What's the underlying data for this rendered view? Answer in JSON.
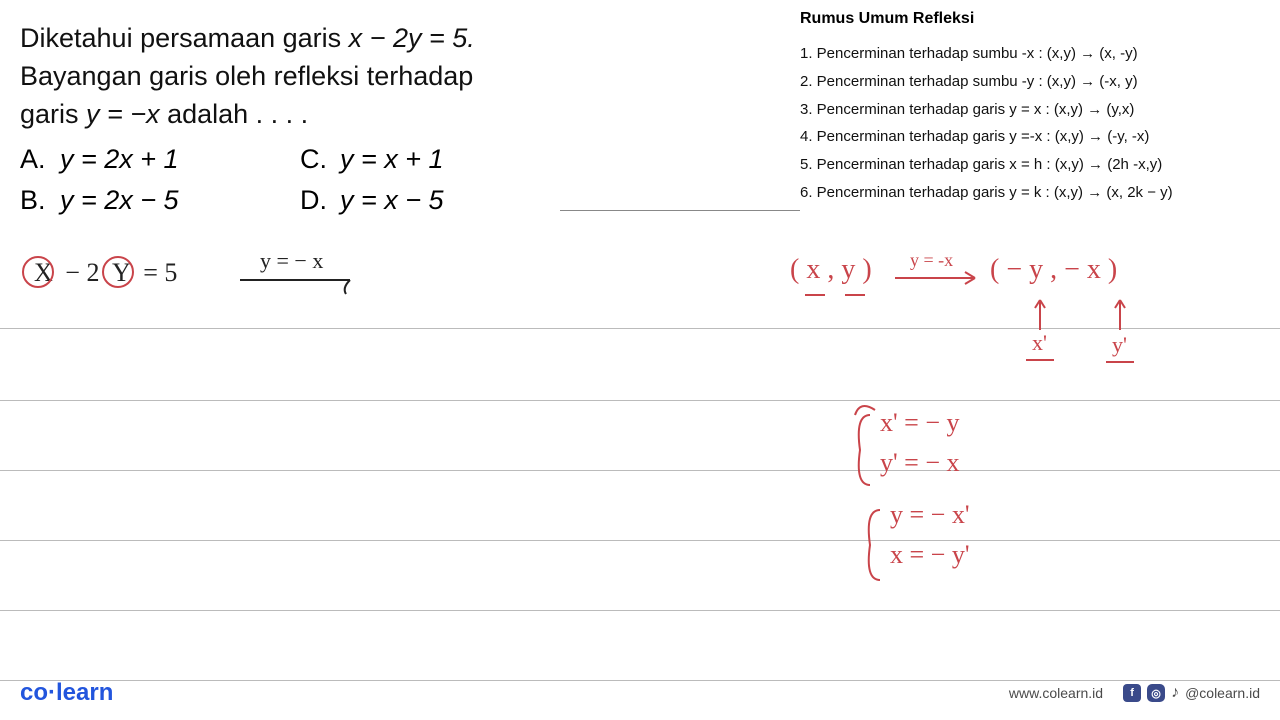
{
  "problem": {
    "line1_a": "Diketahui persamaan garis ",
    "line1_eq": "x − 2y = 5.",
    "line2": "Bayangan garis oleh refleksi terhadap",
    "line3_a": "garis ",
    "line3_eq": "y = −x",
    "line3_b": " adalah . . . .",
    "options": {
      "A_label": "A.",
      "A_text": "y = 2x + 1",
      "B_label": "B.",
      "B_text": "y = 2x − 5",
      "C_label": "C.",
      "C_text": "y = x + 1",
      "D_label": "D.",
      "D_text": "y = x − 5"
    }
  },
  "formulas": {
    "title": "Rumus Umum Refleksi",
    "items": [
      "1. Pencerminan terhadap sumbu -x : (x,y) → (x, -y)",
      "2. Pencerminan terhadap sumbu -y : (x,y) → (-x, y)",
      "3. Pencerminan terhadap garis y = x : (x,y) → (y,x)",
      "4. Pencerminan terhadap garis y =-x : (x,y) → (-y, -x)",
      "5. Pencerminan terhadap garis x = h : (x,y) → (2h -x,y)",
      "6. Pencerminan terhadap garis y = k : (x,y) → (x, 2k − y)"
    ]
  },
  "handwriting": {
    "eq_left": "X − 2 Y = 5",
    "arrow_label": "y = − x",
    "map_left": "( x , y )",
    "map_arrow": "y = -x",
    "map_right": "( − y  ,  − x )",
    "xprime_up": "x'",
    "yprime_up": "y'",
    "brace1_a": "x' = − y",
    "brace1_b": "y' = − x",
    "brace2_a": "y = − x'",
    "brace2_b": "x = − y'"
  },
  "footer": {
    "logo": "co learn",
    "url": "www.colearn.id",
    "handle": "@colearn.id"
  },
  "style": {
    "rule_color": "#bbbbbb",
    "rule_positions": [
      328,
      400,
      470,
      540,
      610,
      680
    ],
    "red": "#c9444a",
    "black": "#222222"
  }
}
